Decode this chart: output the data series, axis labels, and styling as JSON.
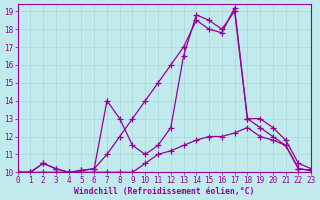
{
  "xlabel": "Windchill (Refroidissement éolien,°C)",
  "background_color": "#c0eaec",
  "grid_color": "#a8d8dc",
  "line_color": "#990099",
  "xlim": [
    0,
    23
  ],
  "ylim": [
    10,
    19.4
  ],
  "xticks": [
    0,
    1,
    2,
    3,
    4,
    5,
    6,
    7,
    8,
    9,
    10,
    11,
    12,
    13,
    14,
    15,
    16,
    17,
    18,
    19,
    20,
    21,
    22,
    23
  ],
  "yticks": [
    10,
    11,
    12,
    13,
    14,
    15,
    16,
    17,
    18,
    19
  ],
  "curve1_x": [
    0,
    1,
    2,
    3,
    4,
    5,
    6,
    7,
    8,
    9,
    10,
    11,
    12,
    13,
    14,
    15,
    16,
    17,
    18,
    19,
    20,
    21,
    22,
    23
  ],
  "curve1_y": [
    10.0,
    10.0,
    10.5,
    10.2,
    10.0,
    10.1,
    10.2,
    11.0,
    12.0,
    13.0,
    14.0,
    15.0,
    16.0,
    17.0,
    18.5,
    18.0,
    17.8,
    19.2,
    13.0,
    12.5,
    12.0,
    11.5,
    10.2,
    10.1
  ],
  "curve2_x": [
    0,
    1,
    2,
    3,
    4,
    5,
    6,
    7,
    8,
    9,
    10,
    11,
    12,
    13,
    14,
    15,
    16,
    17,
    18,
    19,
    20,
    21,
    22,
    23
  ],
  "curve2_y": [
    10.0,
    10.0,
    10.5,
    10.2,
    10.0,
    10.1,
    10.2,
    14.0,
    13.0,
    11.5,
    11.0,
    11.5,
    12.5,
    16.5,
    18.8,
    18.5,
    18.0,
    19.0,
    13.0,
    13.0,
    12.5,
    11.8,
    10.5,
    10.2
  ],
  "curve3_x": [
    0,
    1,
    2,
    3,
    4,
    5,
    6,
    7,
    8,
    9,
    10,
    11,
    12,
    13,
    14,
    15,
    16,
    17,
    18,
    19,
    20,
    21,
    22,
    23
  ],
  "curve3_y": [
    10.0,
    10.0,
    10.0,
    10.0,
    10.0,
    10.0,
    10.0,
    10.0,
    10.0,
    10.0,
    10.5,
    11.0,
    11.2,
    11.5,
    11.8,
    12.0,
    12.0,
    12.2,
    12.5,
    12.0,
    11.8,
    11.5,
    10.2,
    10.1
  ]
}
